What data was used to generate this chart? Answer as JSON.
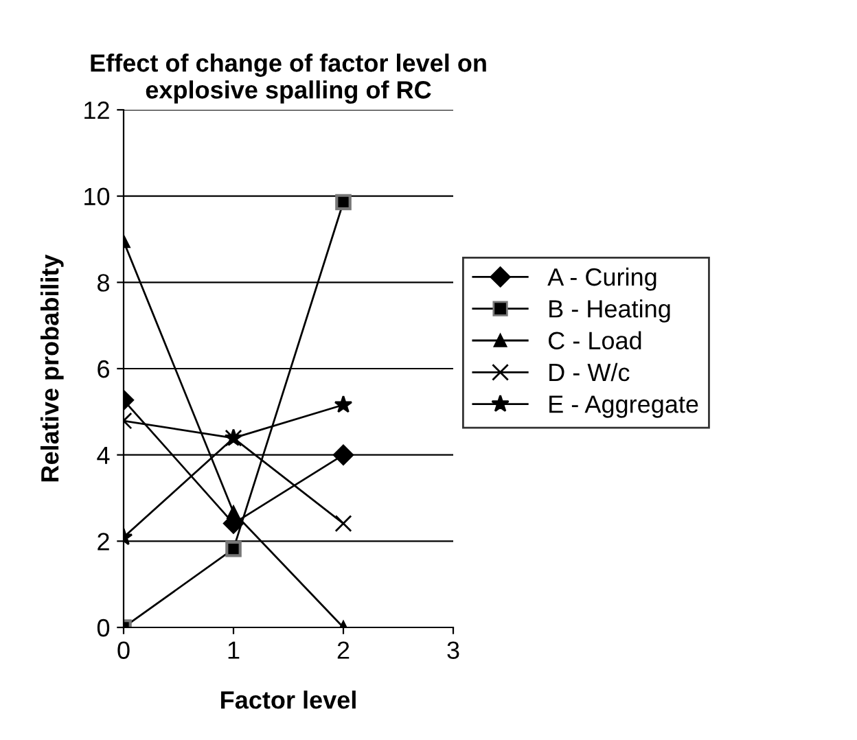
{
  "chart_data": {
    "type": "line",
    "title": "Effect of change of factor level on\nexplosive spalling of RC",
    "xlabel": "Factor level",
    "ylabel": "Relative probability",
    "x": [
      0,
      1,
      2
    ],
    "xlim": [
      0,
      3
    ],
    "xticks": [
      0,
      1,
      2,
      3
    ],
    "ylim": [
      0,
      12
    ],
    "yticks": [
      0,
      2,
      4,
      6,
      8,
      10,
      12
    ],
    "grid": "y",
    "legend": "right",
    "series": [
      {
        "name": "A - Curing",
        "color": "#000000",
        "marker": "diamond",
        "values": [
          5.27,
          2.41,
          4.0
        ]
      },
      {
        "name": "B - Heating",
        "color": "#000000",
        "marker": "square",
        "values": [
          0,
          1.82,
          9.86
        ]
      },
      {
        "name": "C - Load",
        "color": "#000000",
        "marker": "triangle",
        "values": [
          8.95,
          2.67,
          0
        ]
      },
      {
        "name": "D - W/c",
        "color": "#000000",
        "marker": "cross",
        "values": [
          4.79,
          4.39,
          2.41
        ]
      },
      {
        "name": "E - Aggregate",
        "color": "#000000",
        "marker": "star",
        "values": [
          2.09,
          4.39,
          5.16
        ]
      }
    ]
  }
}
